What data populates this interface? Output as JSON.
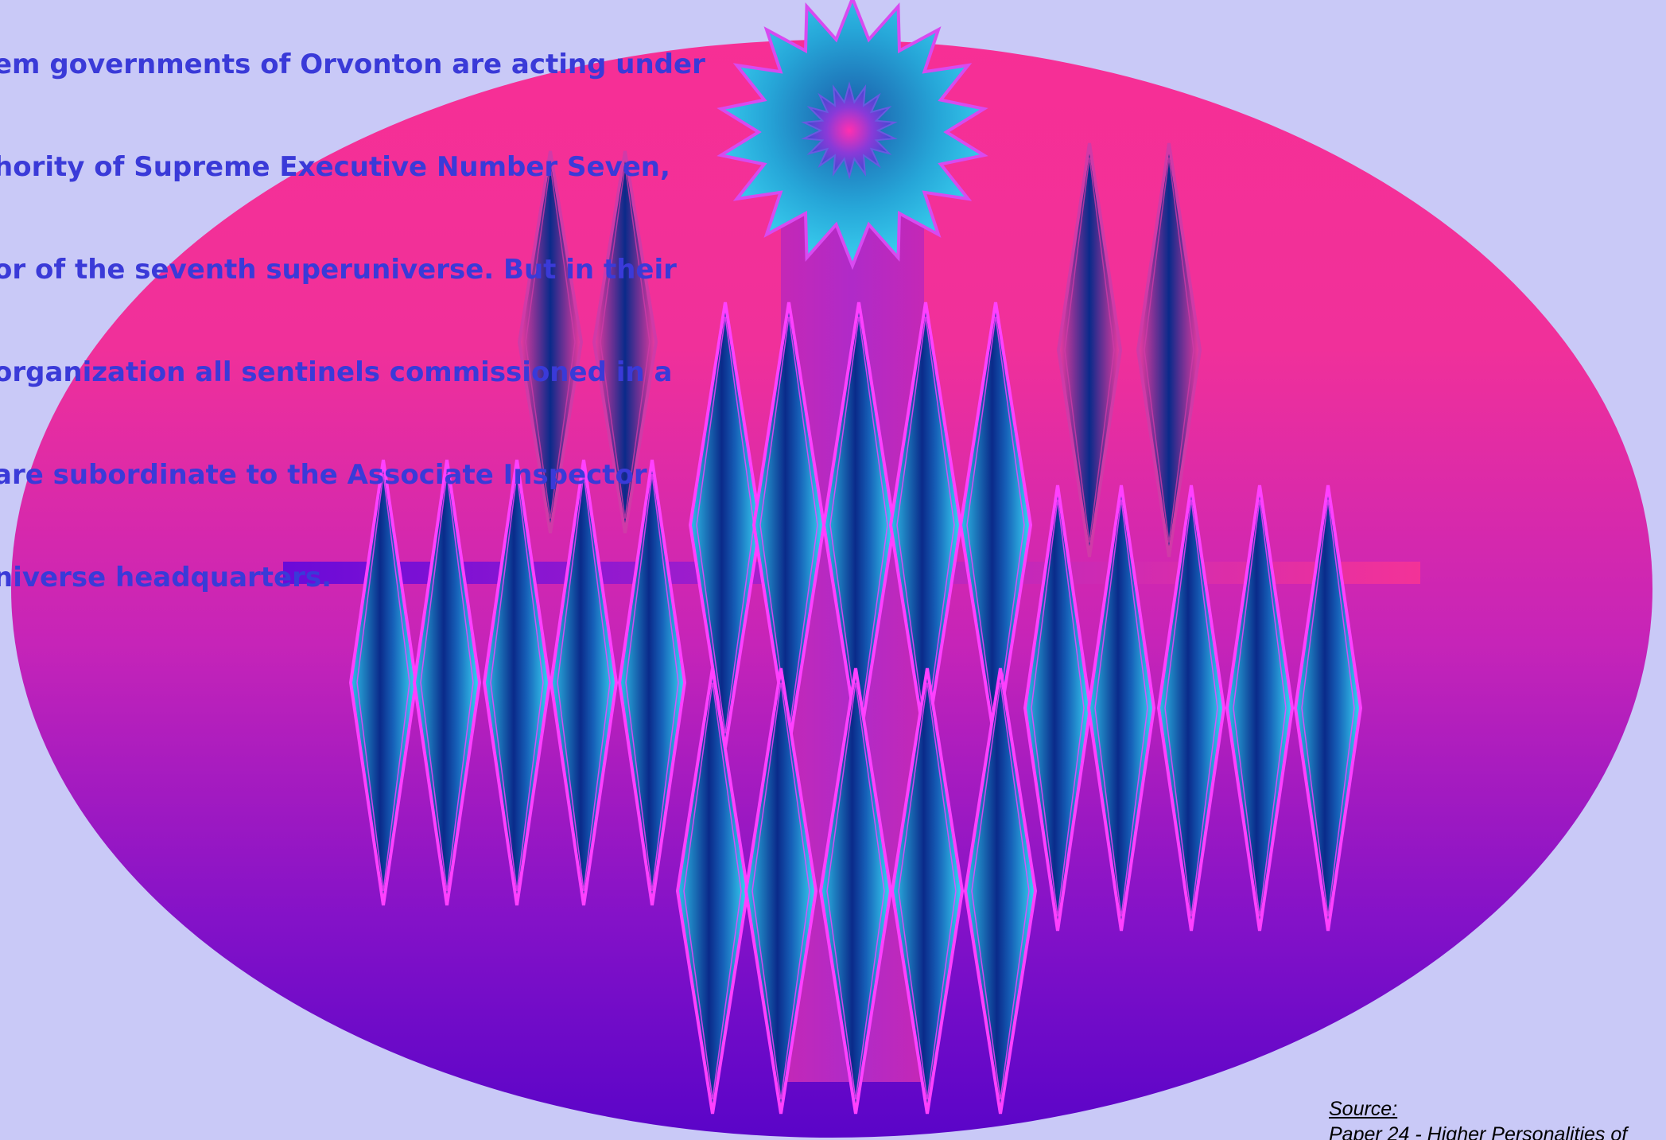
{
  "quote": {
    "lines": [
      "em governments of Orvonton are acting under",
      "hority of Supreme Executive Number Seven,",
      "or of the seventh superuniverse. But in their",
      "organization all sentinels commissioned in a",
      "are subordinate to the Associate Inspector",
      "niverse headquarters."
    ]
  },
  "source": {
    "label": "Source:",
    "citation": "Paper 24 - Higher Personalities of"
  },
  "colors": {
    "background": "#c9c9f7",
    "ellipse_top": "#f72f95",
    "ellipse_mid": "#b222c6",
    "ellipse_bottom": "#5a04c8",
    "diamond_core": "#0a2a8a",
    "diamond_edge": "#2ec2ea",
    "diamond_outline": "#ff40ff",
    "star_outer": "#2ec2ea",
    "text": "#3a3ad8"
  }
}
